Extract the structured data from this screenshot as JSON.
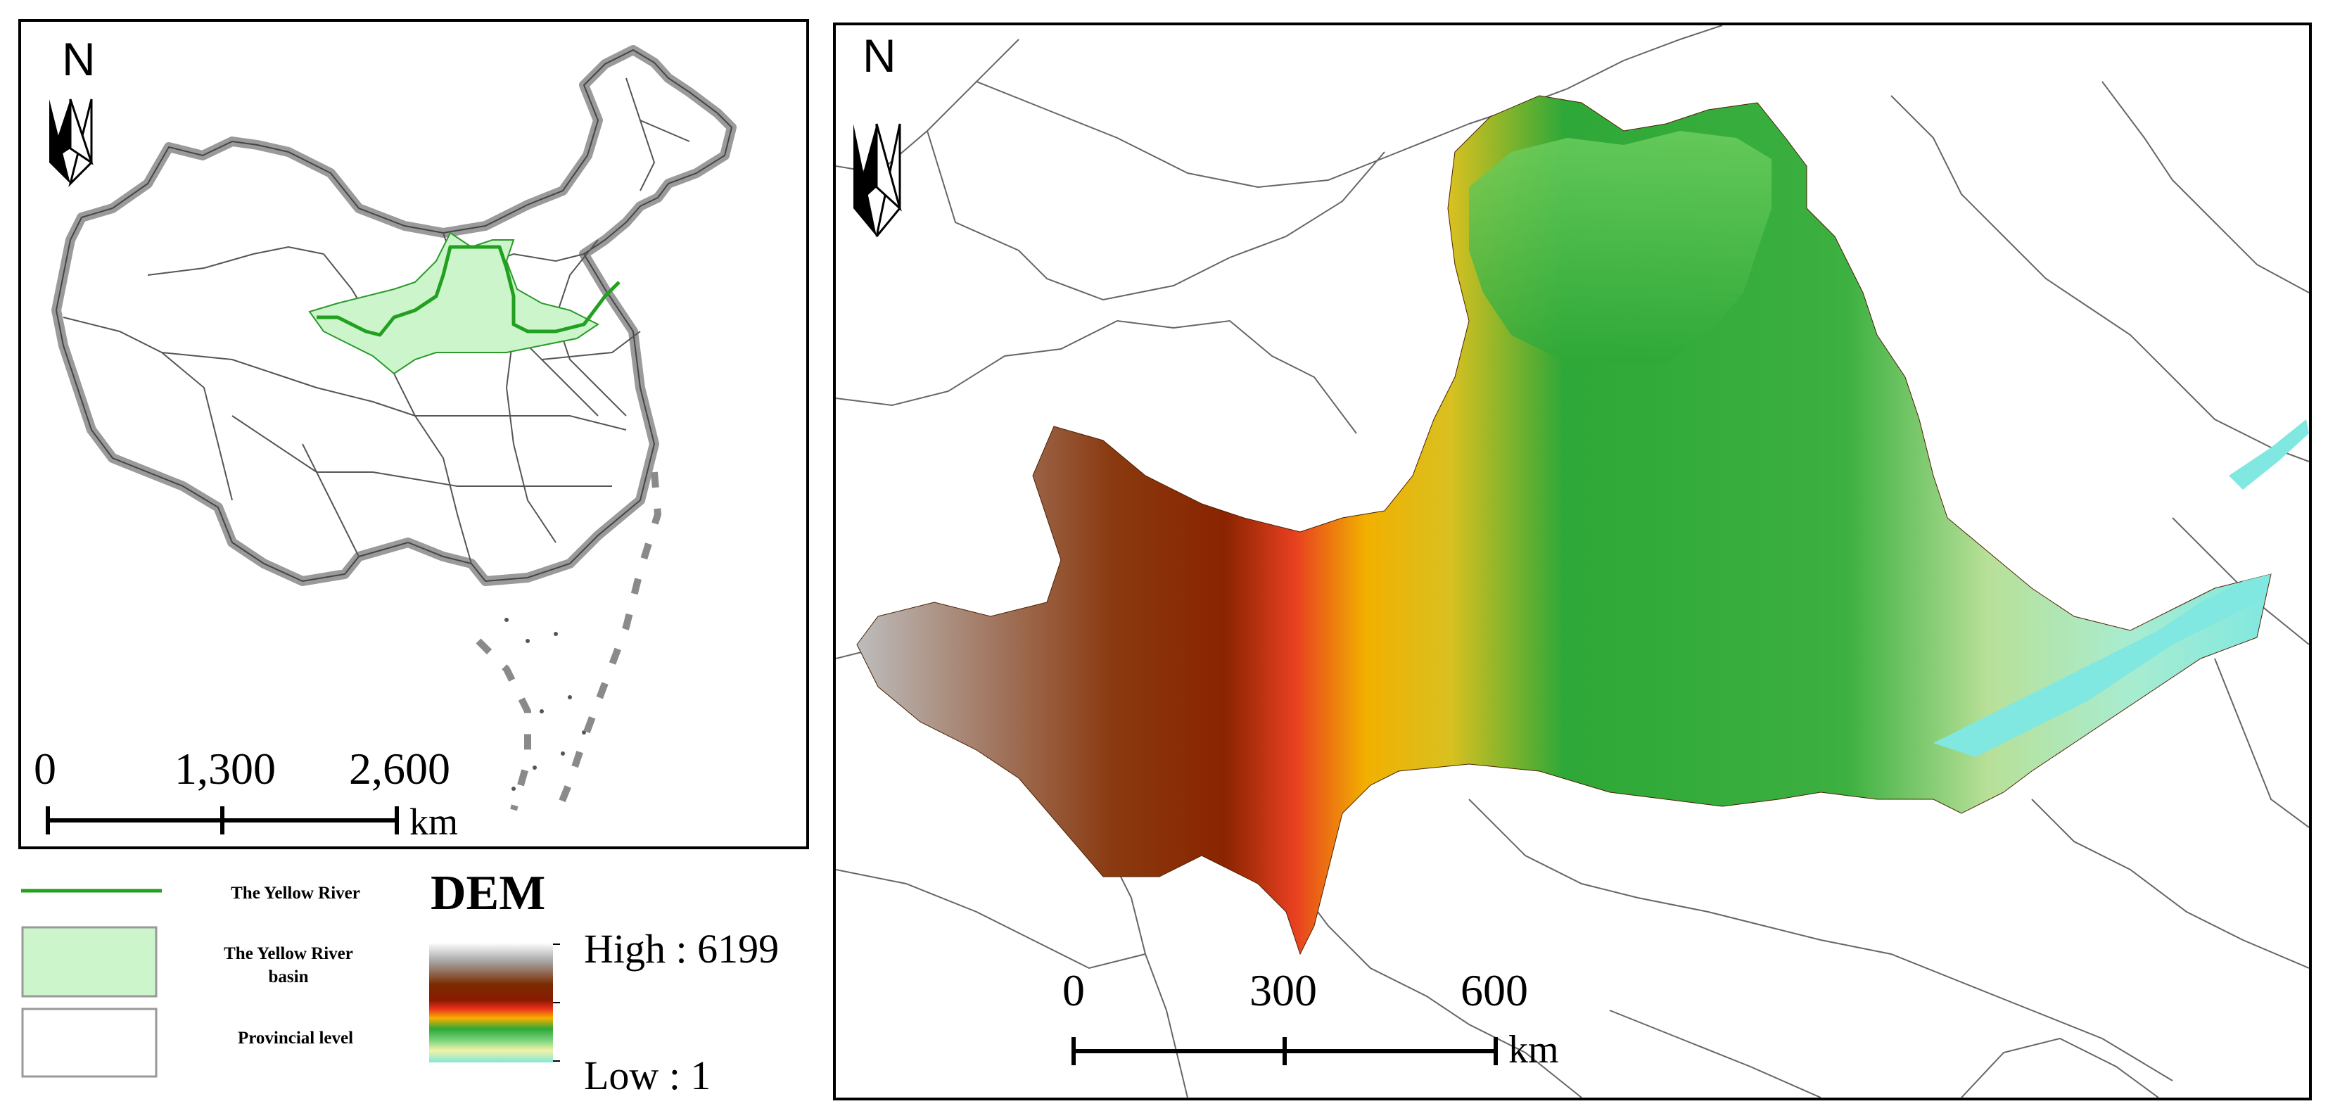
{
  "left_map": {
    "north_label": "N",
    "scale": {
      "ticks": [
        "0",
        "1,300",
        "2,600"
      ],
      "unit": "km"
    }
  },
  "right_map": {
    "north_label": "N",
    "scale": {
      "ticks": [
        "0",
        "300",
        "600"
      ],
      "unit": "km"
    }
  },
  "legend": {
    "items": [
      {
        "label": "The Yellow River",
        "symbol": "line",
        "color": "#22a020"
      },
      {
        "label": "The Yellow River basin",
        "symbol": "fill",
        "color": "#ccf5cc"
      },
      {
        "label": "Provincial level",
        "symbol": "outline",
        "color": "#ffffff"
      }
    ]
  },
  "dem": {
    "title": "DEM",
    "high_label": "High : 6199",
    "low_label": "Low : 1",
    "ramp_colors": [
      "#ffffff",
      "#a8a8a8",
      "#7a2a00",
      "#8a1a00",
      "#e8301c",
      "#f8b000",
      "#2ea838",
      "#7ed67e",
      "#f2f2a8",
      "#80e8d8"
    ]
  },
  "colors": {
    "province_line": "#555555",
    "border_halo": "#9a9a9a",
    "river": "#22a020",
    "basin": "#ccf5cc"
  }
}
